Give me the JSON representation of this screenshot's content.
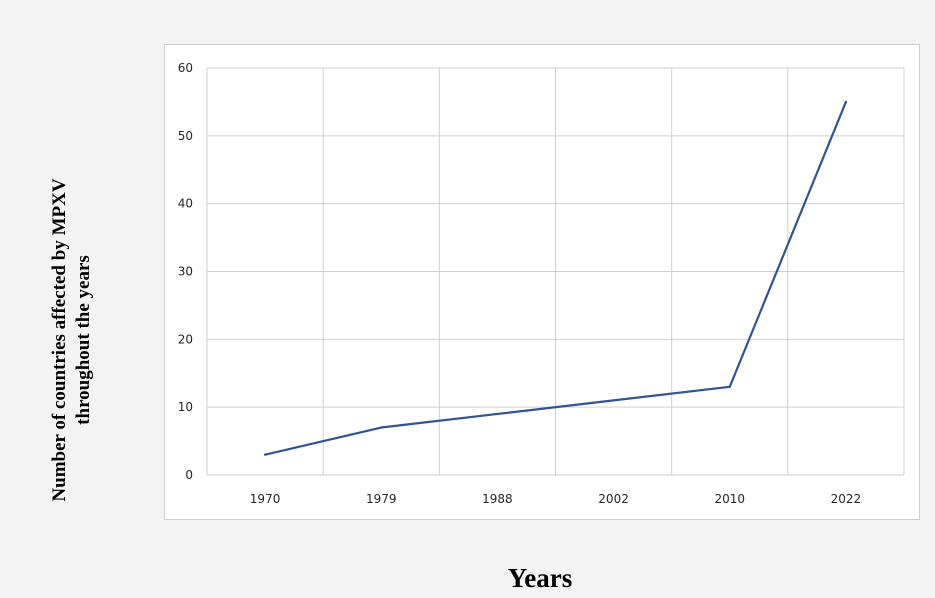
{
  "chart_data": {
    "type": "line",
    "categories": [
      "1970",
      "1979",
      "1988",
      "2002",
      "2010",
      "2022"
    ],
    "x_point_positions": [
      0,
      1,
      2,
      3,
      4,
      5
    ],
    "series": [
      {
        "name": "",
        "color": "#2e5597",
        "points": [
          {
            "x": 0,
            "y": 3
          },
          {
            "x": 1,
            "y": 7
          },
          {
            "x": 2,
            "y": 9
          },
          {
            "x": 3,
            "y": 11
          },
          {
            "x": 4,
            "y": 13
          },
          {
            "x": 5,
            "y": 55
          }
        ]
      }
    ],
    "title": "",
    "ylabel_lines": [
      "Number of countries affected by MPXV",
      "throughout the years"
    ],
    "xlabel": "Years",
    "ylim": [
      0,
      60
    ],
    "yticks": [
      "0",
      "10",
      "20",
      "30",
      "40",
      "50",
      "60"
    ],
    "grid": true,
    "legend": "none"
  }
}
